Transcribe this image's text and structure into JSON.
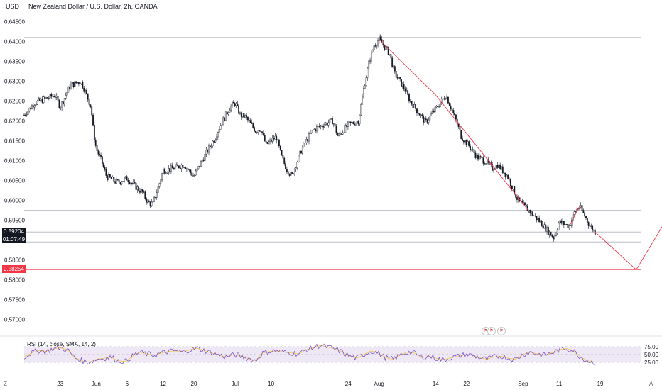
{
  "header": {
    "currency": "USD",
    "title": "New Zealand Dollar / U.S. Dollar, 2h, OANDA"
  },
  "price_labels": {
    "current_price": "0.59204",
    "countdown": "01:07:49",
    "target_price": "0.58254"
  },
  "indicator": {
    "label": "RSI (14, close, SMA, 14, 2)",
    "levels": [
      "75.00",
      "50.00",
      "25.00"
    ]
  },
  "corners": {
    "timezone_icon": "Z",
    "auto_scale": "A"
  },
  "colors": {
    "background": "#ffffff",
    "candle": "#131722",
    "drawing": "#f23645",
    "current_price_bg": "#131722",
    "target_price_bg": "#f23645",
    "rsi_line": "#7e57c2",
    "rsi_ma": "#f7c948",
    "rsi_band": "#ede7f6",
    "guide_line": "#b2b5be"
  },
  "chart_data": {
    "type": "candlestick",
    "title": "New Zealand Dollar / U.S. Dollar, 2h, OANDA",
    "ylabel": "USD",
    "ylim": [
      0.5665,
      0.6465
    ],
    "y_ticks": [
      "0.64500",
      "0.64000",
      "0.63500",
      "0.63000",
      "0.62500",
      "0.62000",
      "0.61500",
      "0.61000",
      "0.60500",
      "0.60000",
      "0.59500",
      "0.59000",
      "0.58500",
      "0.58000",
      "0.57500",
      "0.57000"
    ],
    "x_ticks": [
      "23",
      "Jun",
      "6",
      "12",
      "20",
      "Jul",
      "10",
      "24",
      "Aug",
      "14",
      "22",
      "Sep",
      "11",
      "19"
    ],
    "x_range_days": [
      0,
      120
    ],
    "x_tick_days": [
      7,
      14,
      20,
      27,
      33,
      41,
      48,
      63,
      69,
      80,
      86,
      97,
      104,
      112
    ],
    "path": [
      [
        0,
        0.6215
      ],
      [
        2,
        0.6245
      ],
      [
        4,
        0.6255
      ],
      [
        6,
        0.6265
      ],
      [
        7,
        0.6235
      ],
      [
        9,
        0.629
      ],
      [
        11,
        0.63
      ],
      [
        12,
        0.627
      ],
      [
        13,
        0.6235
      ],
      [
        13.5,
        0.617
      ],
      [
        14,
        0.613
      ],
      [
        15,
        0.61
      ],
      [
        16,
        0.606
      ],
      [
        18,
        0.6045
      ],
      [
        20,
        0.6055
      ],
      [
        22,
        0.603
      ],
      [
        23,
        0.602
      ],
      [
        24,
        0.5995
      ],
      [
        25,
        0.599
      ],
      [
        26,
        0.603
      ],
      [
        27,
        0.6075
      ],
      [
        29,
        0.608
      ],
      [
        31,
        0.609
      ],
      [
        33,
        0.606
      ],
      [
        35,
        0.611
      ],
      [
        37,
        0.6155
      ],
      [
        38,
        0.6185
      ],
      [
        40,
        0.6235
      ],
      [
        41,
        0.6245
      ],
      [
        42,
        0.6215
      ],
      [
        43,
        0.621
      ],
      [
        45,
        0.6175
      ],
      [
        46,
        0.618
      ],
      [
        47,
        0.614
      ],
      [
        49,
        0.616
      ],
      [
        50,
        0.611
      ],
      [
        51,
        0.608
      ],
      [
        52,
        0.606
      ],
      [
        54,
        0.613
      ],
      [
        56,
        0.6175
      ],
      [
        58,
        0.619
      ],
      [
        60,
        0.62
      ],
      [
        61,
        0.616
      ],
      [
        63,
        0.619
      ],
      [
        65,
        0.62
      ],
      [
        66,
        0.628
      ],
      [
        67,
        0.6345
      ],
      [
        68,
        0.639
      ],
      [
        69,
        0.6405
      ],
      [
        71,
        0.637
      ],
      [
        72,
        0.632
      ],
      [
        74,
        0.628
      ],
      [
        75,
        0.625
      ],
      [
        77,
        0.6215
      ],
      [
        78,
        0.6195
      ],
      [
        80,
        0.623
      ],
      [
        82,
        0.6265
      ],
      [
        84,
        0.62
      ],
      [
        85,
        0.616
      ],
      [
        86,
        0.6145
      ],
      [
        88,
        0.611
      ],
      [
        90,
        0.6095
      ],
      [
        91,
        0.608
      ],
      [
        92,
        0.609
      ],
      [
        94,
        0.606
      ],
      [
        95,
        0.603
      ],
      [
        96,
        0.6
      ],
      [
        98,
        0.5975
      ],
      [
        100,
        0.595
      ],
      [
        102,
        0.592
      ],
      [
        103,
        0.5905
      ],
      [
        104,
        0.5945
      ],
      [
        106,
        0.5935
      ],
      [
        107,
        0.597
      ],
      [
        108,
        0.5985
      ],
      [
        109,
        0.596
      ],
      [
        110,
        0.5935
      ],
      [
        111,
        0.592
      ]
    ],
    "current_price": 0.59204,
    "drawings": {
      "projection_path": [
        [
          111,
          0.592
        ],
        [
          119,
          0.5825
        ],
        [
          132,
          0.6105
        ]
      ],
      "trendline_1": [
        [
          69,
          0.6405
        ],
        [
          80,
          0.6265
        ]
      ],
      "trendline_2": [
        [
          80,
          0.6265
        ],
        [
          98,
          0.5975
        ]
      ],
      "trendline_3": [
        [
          106,
          0.5935
        ],
        [
          108,
          0.5985
        ]
      ],
      "horizontal_levels": [
        0.641,
        0.5975,
        0.592,
        0.5895
      ],
      "target_level": 0.58254
    },
    "rsi": {
      "ylim": [
        0,
        100
      ],
      "levels": [
        75,
        50,
        25
      ],
      "values": [
        42,
        55,
        63,
        60,
        68,
        72,
        65,
        40,
        30,
        25,
        35,
        38,
        42,
        30,
        28,
        45,
        58,
        52,
        48,
        55,
        60,
        62,
        58,
        66,
        70,
        62,
        55,
        48,
        42,
        50,
        45,
        38,
        30,
        55,
        60,
        62,
        58,
        55,
        52,
        65,
        72,
        80,
        74,
        68,
        58,
        45,
        38,
        50,
        62,
        55,
        40,
        35,
        48,
        58,
        55,
        40,
        45,
        38,
        32,
        40,
        44,
        50,
        48,
        40,
        35,
        42,
        45,
        38,
        35,
        50,
        58,
        52,
        48,
        55,
        65,
        70,
        62,
        42,
        30,
        25
      ]
    }
  }
}
